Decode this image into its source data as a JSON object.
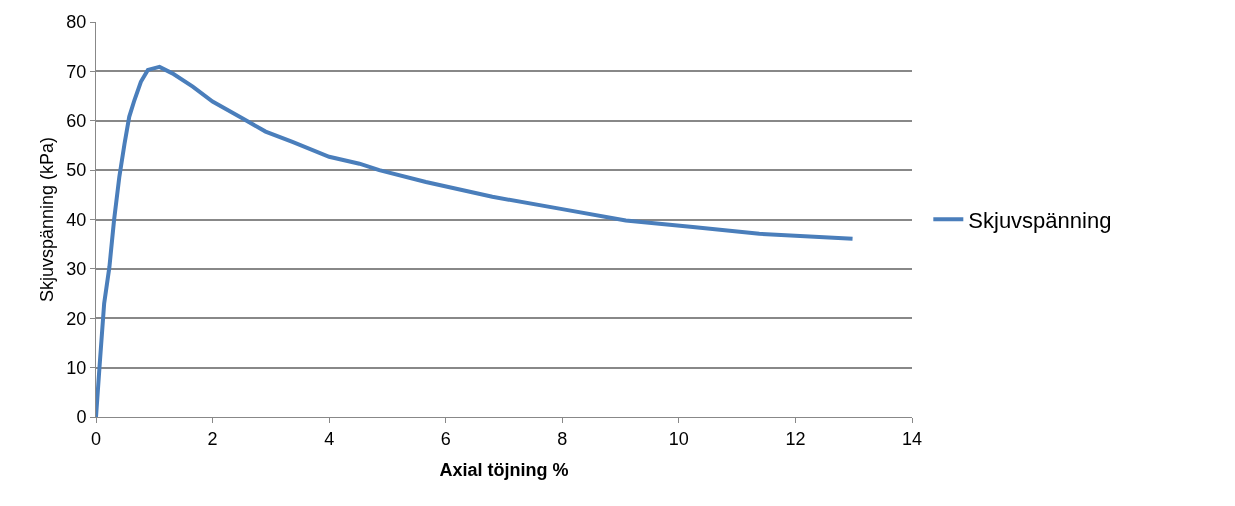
{
  "chart_data": {
    "type": "line",
    "xlabel": "Axial töjning %",
    "ylabel": "Skjuvspänning (kPa)",
    "xlim": [
      0,
      14
    ],
    "xticks": [
      0,
      2,
      4,
      6,
      8,
      10,
      12,
      14
    ],
    "ylim": [
      0,
      80
    ],
    "yticks": [
      0,
      10,
      20,
      30,
      40,
      50,
      60,
      70,
      80
    ],
    "grid": "y",
    "legend": "right",
    "marker": "none",
    "line_style": "solid",
    "series": [
      {
        "name": "Skjuvspänning",
        "color": "#4a7ebb",
        "x": [
          0,
          0.06,
          0.14,
          0.23,
          0.31,
          0.4,
          0.49,
          0.57,
          0.66,
          0.77,
          0.89,
          1.09,
          1.31,
          1.66,
          2.0,
          2.51,
          2.91,
          3.37,
          4.0,
          4.52,
          4.86,
          5.66,
          6.8,
          7.95,
          9.09,
          10.24,
          11.38,
          12.98
        ],
        "values": [
          0,
          10.1,
          23,
          30.4,
          39.9,
          48.6,
          55.4,
          60.8,
          64.2,
          67.9,
          70.3,
          70.9,
          69.6,
          66.9,
          63.9,
          60.5,
          57.8,
          55.7,
          52.7,
          51.3,
          50.0,
          47.6,
          44.6,
          42.2,
          39.8,
          38.5,
          37.1,
          36.1
        ]
      }
    ]
  }
}
